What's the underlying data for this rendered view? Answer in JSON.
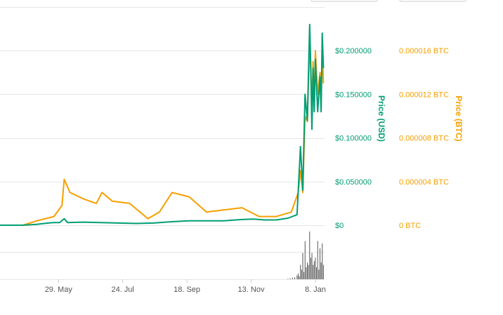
{
  "chart_data": {
    "type": "line",
    "x_axis": {
      "ticks": [
        "29. May",
        "24. Jul",
        "18. Sep",
        "13. Nov",
        "8. Jan"
      ]
    },
    "y_axis_usd": {
      "label": "Price (USD)",
      "ticks": [
        "$0",
        "$0.050000",
        "$0.100000",
        "$0.150000",
        "$0.200000"
      ],
      "range": [
        0,
        0.25
      ]
    },
    "y_axis_btc": {
      "label": "Price (BTC)",
      "ticks": [
        "0 BTC",
        "0.000004 BTC",
        "0.000008 BTC",
        "0.000012 BTC",
        "0.000016 BTC"
      ],
      "range": [
        0,
        2e-05
      ]
    },
    "series": [
      {
        "name": "Price (USD)",
        "axis": "usd",
        "color": "#009e73",
        "points": [
          [
            "2017-04-08",
            0.0
          ],
          [
            "2017-04-28",
            0.0
          ],
          [
            "2017-05-10",
            0.001
          ],
          [
            "2017-05-20",
            0.0025
          ],
          [
            "2017-05-25",
            0.003
          ],
          [
            "2017-05-30",
            0.003
          ],
          [
            "2017-06-03",
            0.0075
          ],
          [
            "2017-06-06",
            0.003
          ],
          [
            "2017-06-20",
            0.0035
          ],
          [
            "2017-07-05",
            0.003
          ],
          [
            "2017-07-20",
            0.0025
          ],
          [
            "2017-08-05",
            0.002
          ],
          [
            "2017-08-20",
            0.0025
          ],
          [
            "2017-09-05",
            0.004
          ],
          [
            "2017-09-20",
            0.005
          ],
          [
            "2017-10-05",
            0.005
          ],
          [
            "2017-10-20",
            0.005
          ],
          [
            "2017-11-05",
            0.0065
          ],
          [
            "2017-11-15",
            0.007
          ],
          [
            "2017-11-25",
            0.006
          ],
          [
            "2017-12-05",
            0.006
          ],
          [
            "2017-12-15",
            0.008
          ],
          [
            "2017-12-23",
            0.012
          ],
          [
            "2017-12-26",
            0.09
          ],
          [
            "2017-12-28",
            0.04
          ],
          [
            "2017-12-30",
            0.15
          ],
          [
            "2018-01-01",
            0.12
          ],
          [
            "2018-01-03",
            0.23
          ],
          [
            "2018-01-04",
            0.18
          ],
          [
            "2018-01-05",
            0.11
          ],
          [
            "2018-01-06",
            0.18
          ],
          [
            "2018-01-07",
            0.13
          ],
          [
            "2018-01-08",
            0.19
          ],
          [
            "2018-01-10",
            0.13
          ],
          [
            "2018-01-12",
            0.17
          ],
          [
            "2018-01-13",
            0.13
          ],
          [
            "2018-01-14",
            0.22
          ],
          [
            "2018-01-15",
            0.18
          ]
        ]
      },
      {
        "name": "Price (BTC)",
        "axis": "btc",
        "color": "#f5a000",
        "points": [
          [
            "2017-04-08",
            0.0
          ],
          [
            "2017-04-28",
            0.0
          ],
          [
            "2017-05-10",
            4e-07
          ],
          [
            "2017-05-25",
            8e-07
          ],
          [
            "2017-06-01",
            1.8e-06
          ],
          [
            "2017-06-03",
            4.2e-06
          ],
          [
            "2017-06-08",
            3e-06
          ],
          [
            "2017-06-20",
            2.4e-06
          ],
          [
            "2017-07-01",
            2e-06
          ],
          [
            "2017-07-06",
            3e-06
          ],
          [
            "2017-07-15",
            2.2e-06
          ],
          [
            "2017-07-30",
            2e-06
          ],
          [
            "2017-08-15",
            6e-07
          ],
          [
            "2017-08-25",
            1.2e-06
          ],
          [
            "2017-09-05",
            3e-06
          ],
          [
            "2017-09-20",
            2.6e-06
          ],
          [
            "2017-10-05",
            1.2e-06
          ],
          [
            "2017-10-20",
            1.4e-06
          ],
          [
            "2017-11-05",
            1.6e-06
          ],
          [
            "2017-11-20",
            8e-07
          ],
          [
            "2017-12-05",
            8e-07
          ],
          [
            "2017-12-18",
            1.2e-06
          ],
          [
            "2017-12-24",
            3e-06
          ],
          [
            "2017-12-26",
            5e-06
          ],
          [
            "2017-12-28",
            3e-06
          ],
          [
            "2017-12-30",
            1e-05
          ],
          [
            "2018-01-01",
            9.5e-06
          ],
          [
            "2018-01-03",
            1.7e-05
          ],
          [
            "2018-01-04",
            1.4e-05
          ],
          [
            "2018-01-05",
            1.1e-05
          ],
          [
            "2018-01-06",
            1.5e-05
          ],
          [
            "2018-01-07",
            1.1e-05
          ],
          [
            "2018-01-08",
            1.6e-05
          ],
          [
            "2018-01-10",
            1.2e-05
          ],
          [
            "2018-01-12",
            1.4e-05
          ],
          [
            "2018-01-13",
            1.1e-05
          ],
          [
            "2018-01-14",
            1.65e-05
          ],
          [
            "2018-01-15",
            1.3e-05
          ]
        ]
      }
    ],
    "volume": {
      "color": "#555555",
      "points": [
        [
          "2017-12-15",
          1
        ],
        [
          "2017-12-17",
          2
        ],
        [
          "2017-12-19",
          3
        ],
        [
          "2017-12-21",
          4
        ],
        [
          "2017-12-23",
          8
        ],
        [
          "2017-12-24",
          12
        ],
        [
          "2017-12-25",
          6
        ],
        [
          "2017-12-26",
          30
        ],
        [
          "2017-12-27",
          20
        ],
        [
          "2017-12-28",
          55
        ],
        [
          "2017-12-29",
          15
        ],
        [
          "2017-12-30",
          80
        ],
        [
          "2017-12-31",
          25
        ],
        [
          "2018-01-01",
          35
        ],
        [
          "2018-01-02",
          30
        ],
        [
          "2018-01-03",
          100
        ],
        [
          "2018-01-04",
          45
        ],
        [
          "2018-01-05",
          55
        ],
        [
          "2018-01-06",
          30
        ],
        [
          "2018-01-07",
          38
        ],
        [
          "2018-01-08",
          45
        ],
        [
          "2018-01-09",
          25
        ],
        [
          "2018-01-10",
          80
        ],
        [
          "2018-01-11",
          20
        ],
        [
          "2018-01-12",
          65
        ],
        [
          "2018-01-13",
          35
        ],
        [
          "2018-01-14",
          75
        ],
        [
          "2018-01-15",
          30
        ]
      ]
    },
    "grid": true
  }
}
